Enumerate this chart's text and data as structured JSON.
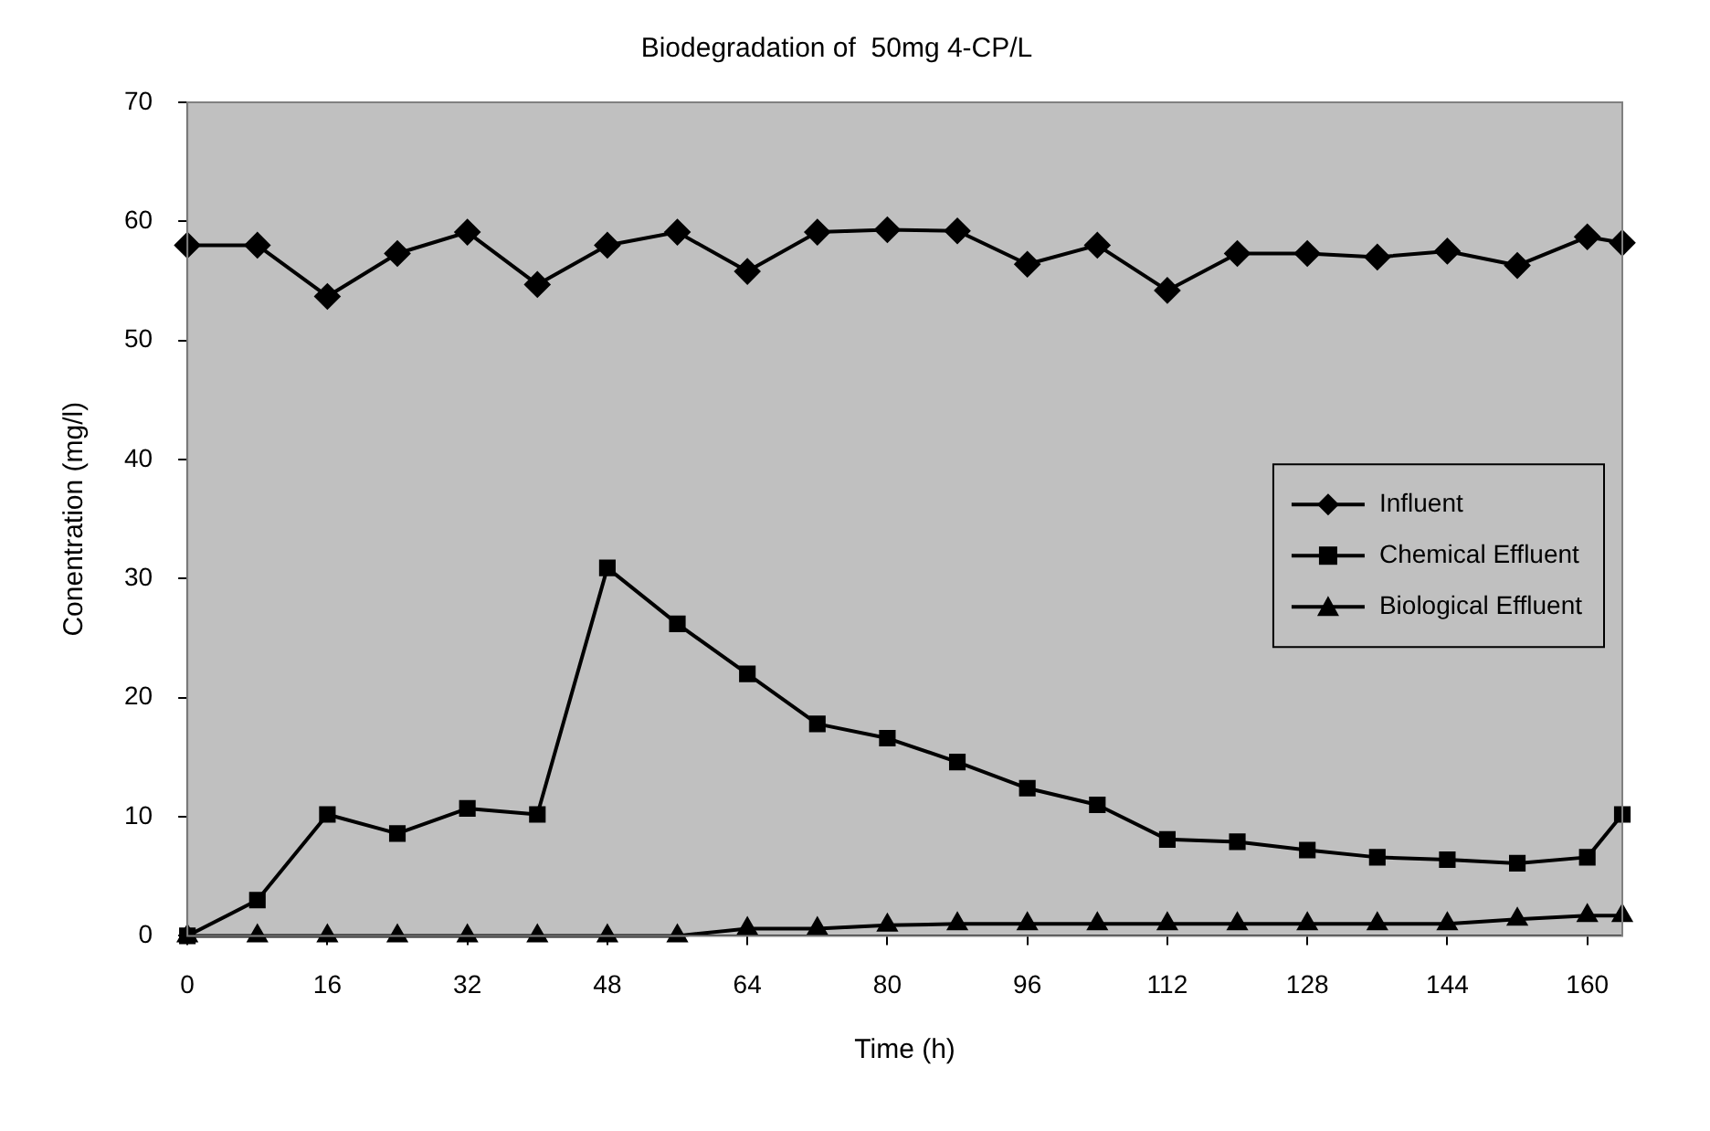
{
  "chart_data": {
    "type": "line",
    "title": "Biodegradation of  50mg 4-CP/L",
    "xlabel": "Time (h)",
    "ylabel": "Conentration (mg/l)",
    "x": [
      0,
      8,
      16,
      24,
      32,
      40,
      48,
      56,
      64,
      72,
      80,
      88,
      96,
      104,
      112,
      120,
      128,
      136,
      144,
      152,
      160,
      164
    ],
    "xlim": [
      0,
      164
    ],
    "xticks": [
      0,
      16,
      32,
      48,
      64,
      80,
      96,
      112,
      128,
      144,
      160
    ],
    "ylim": [
      0,
      70
    ],
    "yticks": [
      0,
      10,
      20,
      30,
      40,
      50,
      60,
      70
    ],
    "grid": false,
    "legend": "right",
    "line_style": "solid",
    "series": [
      {
        "name": "Influent",
        "color": "#000000",
        "marker": "diamond",
        "values": [
          58.0,
          58.0,
          53.7,
          57.3,
          59.1,
          54.7,
          58.0,
          59.1,
          55.8,
          59.1,
          59.3,
          59.2,
          56.4,
          58.0,
          54.2,
          57.3,
          57.3,
          57.0,
          57.5,
          56.3,
          58.7,
          58.2
        ]
      },
      {
        "name": "Chemical Effluent",
        "color": "#000000",
        "marker": "square",
        "values": [
          0,
          3.0,
          10.2,
          8.6,
          10.7,
          10.2,
          30.9,
          26.2,
          22.0,
          17.8,
          16.6,
          14.6,
          12.4,
          11.0,
          8.1,
          7.9,
          7.2,
          6.6,
          6.4,
          6.1,
          6.6,
          10.2
        ]
      },
      {
        "name": "Biological Effluent",
        "color": "#000000",
        "marker": "triangle",
        "values": [
          0,
          0,
          0,
          0,
          0,
          0,
          0,
          0,
          0.6,
          0.6,
          0.9,
          1.0,
          1.0,
          1.0,
          1.0,
          1.0,
          1.0,
          1.0,
          1.0,
          1.4,
          1.7,
          1.7
        ]
      }
    ]
  }
}
